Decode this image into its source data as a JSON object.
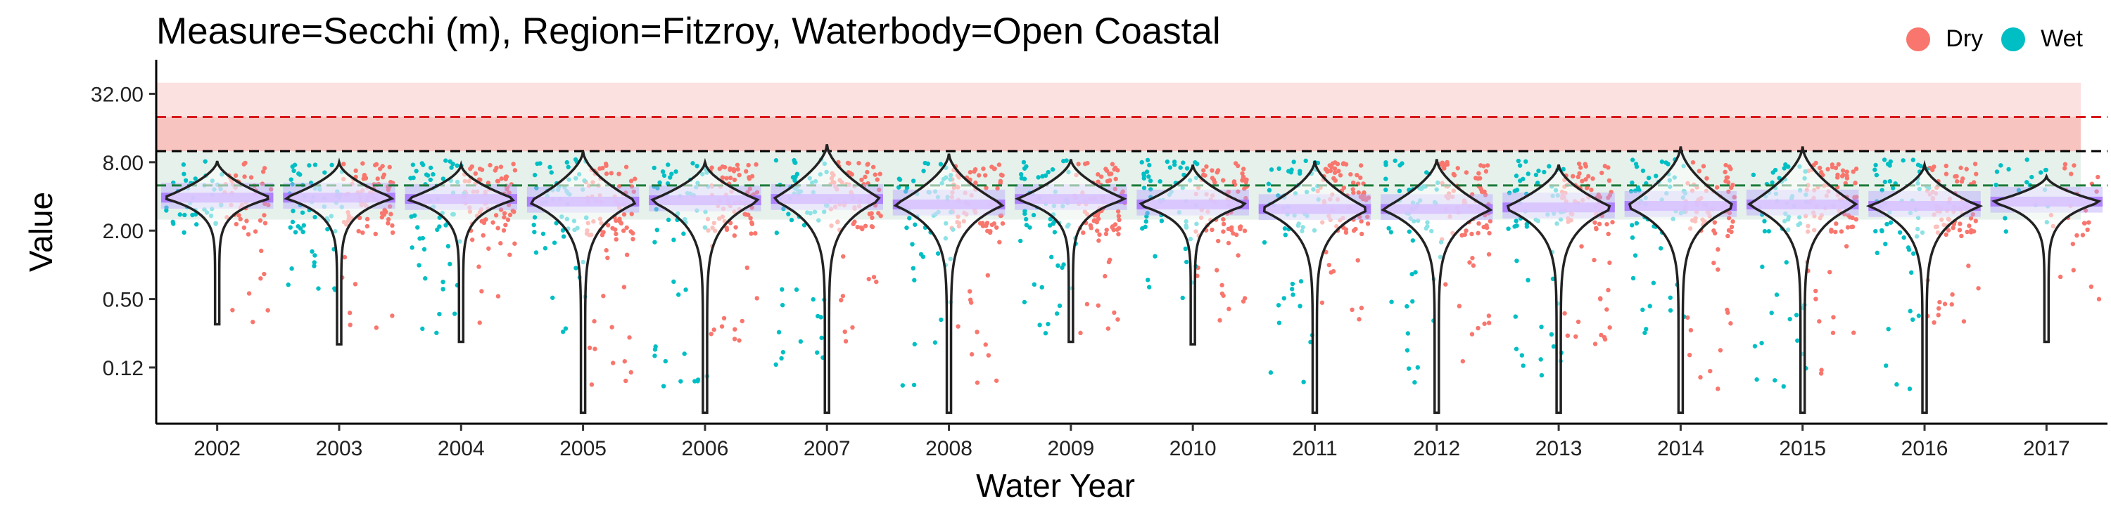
{
  "chart_data": {
    "type": "violin",
    "title": "Measure=Secchi (m), Region=Fitzroy, Waterbody=Open Coastal",
    "xlabel": "Water Year",
    "ylabel": "Value",
    "y_scale": "log2",
    "ylim": [
      0.04,
      48
    ],
    "y_ticks": [
      {
        "value": 0.125,
        "label": "0.12"
      },
      {
        "value": 0.5,
        "label": "0.50"
      },
      {
        "value": 2,
        "label": "2.00"
      },
      {
        "value": 8,
        "label": "8.00"
      },
      {
        "value": 32,
        "label": "32.00"
      }
    ],
    "categories": [
      "2002",
      "2003",
      "2004",
      "2005",
      "2006",
      "2007",
      "2008",
      "2009",
      "2010",
      "2011",
      "2012",
      "2013",
      "2014",
      "2015",
      "2016",
      "2017"
    ],
    "legend": {
      "position": "top-right",
      "entries": [
        {
          "name": "Dry",
          "color": "#F8766D"
        },
        {
          "name": "Wet",
          "color": "#00BFC4"
        }
      ]
    },
    "bands": [
      {
        "from": 2.5,
        "to": 10,
        "color": "#2e8b57",
        "opacity": 0.12
      },
      {
        "from": 10,
        "to": 40,
        "color": "#e8443a",
        "opacity": 0.16
      },
      {
        "from": 10,
        "to": 20,
        "color": "#e8443a",
        "opacity": 0.18
      }
    ],
    "reference_lines": [
      {
        "value": 20,
        "color": "#d7191c",
        "style": "dashed"
      },
      {
        "value": 10,
        "color": "#000000",
        "style": "dashed"
      },
      {
        "value": 5,
        "color": "#1b7a3a",
        "style": "dashed"
      }
    ],
    "violins": [
      {
        "year": "2002",
        "median": 3.9,
        "top": 8.2,
        "bottom": 0.3
      },
      {
        "year": "2003",
        "median": 3.9,
        "top": 8.0,
        "bottom": 0.2
      },
      {
        "year": "2004",
        "median": 3.8,
        "top": 7.6,
        "bottom": 0.21
      },
      {
        "year": "2005",
        "median": 3.6,
        "top": 10.0,
        "bottom": 0.05
      },
      {
        "year": "2006",
        "median": 3.7,
        "top": 8.0,
        "bottom": 0.05
      },
      {
        "year": "2007",
        "median": 3.8,
        "top": 11.5,
        "bottom": 0.05
      },
      {
        "year": "2008",
        "median": 3.4,
        "top": 9.5,
        "bottom": 0.05
      },
      {
        "year": "2009",
        "median": 3.8,
        "top": 8.5,
        "bottom": 0.21
      },
      {
        "year": "2010",
        "median": 3.4,
        "top": 7.6,
        "bottom": 0.2
      },
      {
        "year": "2011",
        "median": 3.1,
        "top": 8.2,
        "bottom": 0.05
      },
      {
        "year": "2012",
        "median": 3.1,
        "top": 8.5,
        "bottom": 0.05
      },
      {
        "year": "2013",
        "median": 3.2,
        "top": 7.6,
        "bottom": 0.05
      },
      {
        "year": "2014",
        "median": 3.3,
        "top": 11.0,
        "bottom": 0.05
      },
      {
        "year": "2015",
        "median": 3.4,
        "top": 11.0,
        "bottom": 0.05
      },
      {
        "year": "2016",
        "median": 3.3,
        "top": 7.6,
        "bottom": 0.05
      },
      {
        "year": "2017",
        "median": 3.6,
        "top": 6.0,
        "bottom": 0.21
      }
    ],
    "point_spread": [
      {
        "year": "2002",
        "dry_low": 0.3,
        "wet_low": 2.0,
        "n": 55
      },
      {
        "year": "2003",
        "dry_low": 0.25,
        "wet_low": 0.4,
        "n": 80
      },
      {
        "year": "2004",
        "dry_low": 0.3,
        "wet_low": 0.25,
        "n": 80
      },
      {
        "year": "2005",
        "dry_low": 0.08,
        "wet_low": 0.25,
        "n": 80
      },
      {
        "year": "2006",
        "dry_low": 0.2,
        "wet_low": 0.08,
        "n": 80
      },
      {
        "year": "2007",
        "dry_low": 0.2,
        "wet_low": 0.08,
        "n": 80
      },
      {
        "year": "2008",
        "dry_low": 0.08,
        "wet_low": 0.08,
        "n": 80
      },
      {
        "year": "2009",
        "dry_low": 0.25,
        "wet_low": 0.25,
        "n": 80
      },
      {
        "year": "2010",
        "dry_low": 0.25,
        "wet_low": 0.5,
        "n": 80
      },
      {
        "year": "2011",
        "dry_low": 0.3,
        "wet_low": 0.08,
        "n": 80
      },
      {
        "year": "2012",
        "dry_low": 0.1,
        "wet_low": 0.08,
        "n": 80
      },
      {
        "year": "2013",
        "dry_low": 0.2,
        "wet_low": 0.08,
        "n": 80
      },
      {
        "year": "2014",
        "dry_low": 0.08,
        "wet_low": 0.25,
        "n": 80
      },
      {
        "year": "2015",
        "dry_low": 0.08,
        "wet_low": 0.08,
        "n": 80
      },
      {
        "year": "2016",
        "dry_low": 0.25,
        "wet_low": 0.08,
        "n": 80
      },
      {
        "year": "2017",
        "dry_low": 0.4,
        "wet_low": 2.5,
        "n": 25
      }
    ]
  }
}
